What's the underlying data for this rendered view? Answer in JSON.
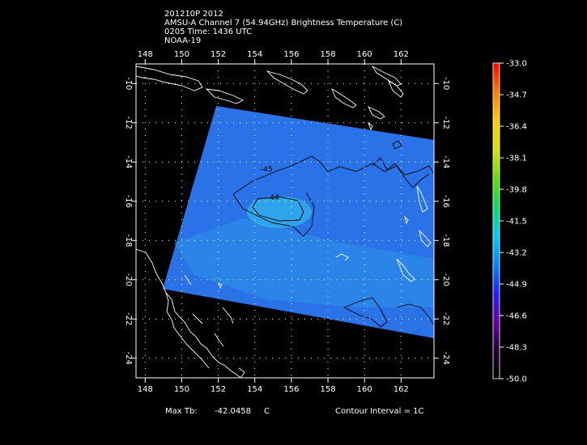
{
  "header": {
    "line1": "201210P 2012",
    "line2": "AMSU-A Channel 7 (54.94GHz) Brightness Temperature (C)",
    "line3": "0205 Time: 1436 UTC",
    "line4": "NOAA-19"
  },
  "map": {
    "lon_range": [
      147.5,
      163.8
    ],
    "lat_range": [
      -25,
      -9
    ],
    "lon_ticks": [
      "148",
      "150",
      "152",
      "154",
      "156",
      "158",
      "160",
      "162"
    ],
    "lat_ticks": [
      "-10",
      "-12",
      "-14",
      "-16",
      "-18",
      "-20",
      "-22",
      "-24"
    ],
    "contour_labels": [
      "-45",
      "-44"
    ],
    "swath_color": "#2a72e8",
    "coast_color": "#ffffff",
    "contour_color": "#000000"
  },
  "colorbar": {
    "labels": [
      "-33.0",
      "-34.7",
      "-36.4",
      "-38.1",
      "-39.8",
      "-41.5",
      "-43.2",
      "-44.9",
      "-46.6",
      "-48.3",
      "-50.0"
    ],
    "colors": [
      "#ff0000",
      "#ff7f00",
      "#ffcc00",
      "#dddd00",
      "#66dd00",
      "#00dd66",
      "#00ccee",
      "#0088ff",
      "#2222ff",
      "#6600aa",
      "#220033",
      "#000000"
    ]
  },
  "footer": {
    "max_tb_label": "Max Tb:",
    "max_tb_value": "-42.0458",
    "max_tb_unit": "C",
    "contour_interval": "Contour Interval = 1C"
  }
}
